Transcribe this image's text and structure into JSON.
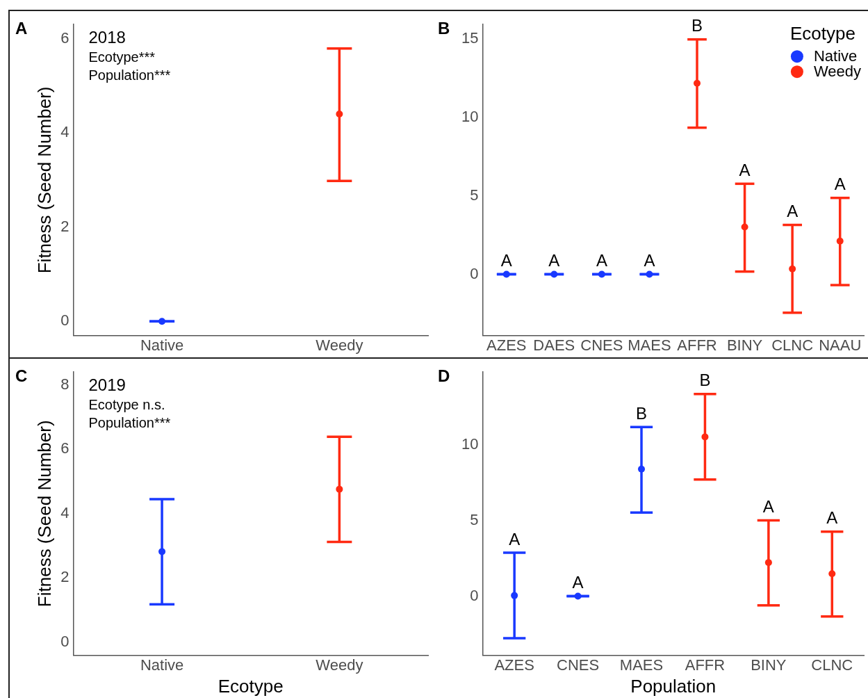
{
  "chart_data": [
    {
      "type": "scatter",
      "ylabel": "Fitness (Seed Number)",
      "categories": [
        "Native",
        "Weedy"
      ],
      "ylim": [
        -0.3,
        6.3
      ],
      "yticks": [
        0,
        2,
        4,
        6
      ],
      "grid": false,
      "legend": false,
      "marker": "circle",
      "annotations": [
        "A",
        "2018",
        "Ecotype***",
        "Population***"
      ],
      "values": [
        0,
        4.4
      ],
      "colors": [
        "#1939ff",
        "#ff2a12"
      ],
      "errors": [
        [
          0,
          0
        ],
        [
          2.98,
          5.79
        ]
      ]
    },
    {
      "type": "scatter",
      "categories": [
        "AZES",
        "DAES",
        "CNES",
        "MAES",
        "AFFR",
        "BINY",
        "CLNC",
        "NAAU"
      ],
      "ylim": [
        -3.9,
        15.9
      ],
      "yticks": [
        0,
        5,
        10,
        15
      ],
      "grid": false,
      "legend": "top right",
      "legend_title": "Ecotype",
      "marker": "circle",
      "annotations": [
        "B",
        {
          "text": "A",
          "x": "AZES",
          "y": 0
        },
        {
          "text": "A",
          "x": "DAES",
          "y": 0
        },
        {
          "text": "A",
          "x": "CNES",
          "y": 0
        },
        {
          "text": "A",
          "x": "MAES",
          "y": 0
        },
        {
          "text": "B",
          "x": "AFFR",
          "y": 14.95
        },
        {
          "text": "A",
          "x": "BINY",
          "y": 5.76
        },
        {
          "text": "A",
          "x": "CLNC",
          "y": 3.14
        },
        {
          "text": "A",
          "x": "NAAU",
          "y": 4.86
        }
      ],
      "series": [
        {
          "name": "Native",
          "color": "#1939ff",
          "values": [
            0,
            0,
            0,
            0,
            null,
            null,
            null,
            null
          ],
          "errors": [
            [
              0,
              0
            ],
            [
              0,
              0
            ],
            [
              0,
              0
            ],
            [
              0,
              0
            ],
            null,
            null,
            null,
            null
          ]
        },
        {
          "name": "Weedy",
          "color": "#ff2a12",
          "values": [
            null,
            null,
            null,
            null,
            12.16,
            3.01,
            0.34,
            2.11
          ],
          "errors": [
            null,
            null,
            null,
            null,
            [
              9.33,
              14.95
            ],
            [
              0.17,
              5.76
            ],
            [
              -2.45,
              3.14
            ],
            [
              -0.69,
              4.86
            ]
          ]
        }
      ]
    },
    {
      "type": "scatter",
      "xlabel": "Ecotype",
      "ylabel": "Fitness (Seed Number)",
      "categories": [
        "Native",
        "Weedy"
      ],
      "ylim": [
        -0.4,
        8.4
      ],
      "yticks": [
        0,
        2,
        4,
        6,
        8
      ],
      "grid": false,
      "legend": false,
      "marker": "circle",
      "annotations": [
        "C",
        "2019",
        "Ecotype n.s.",
        "Population***"
      ],
      "values": [
        2.82,
        4.76
      ],
      "colors": [
        "#1939ff",
        "#ff2a12"
      ],
      "errors": [
        [
          1.18,
          4.45
        ],
        [
          3.12,
          6.39
        ]
      ]
    },
    {
      "type": "scatter",
      "xlabel": "Population",
      "categories": [
        "AZES",
        "CNES",
        "MAES",
        "AFFR",
        "BINY",
        "CLNC"
      ],
      "ylim": [
        -3.9,
        14.8
      ],
      "yticks": [
        0,
        5,
        10
      ],
      "grid": false,
      "legend": false,
      "marker": "circle",
      "annotations": [
        "D",
        {
          "text": "A",
          "x": "AZES",
          "y": 2.87
        },
        {
          "text": "A",
          "x": "CNES",
          "y": 0
        },
        {
          "text": "B",
          "x": "MAES",
          "y": 11.17
        },
        {
          "text": "B",
          "x": "AFFR",
          "y": 13.35
        },
        {
          "text": "A",
          "x": "BINY",
          "y": 5.0
        },
        {
          "text": "A",
          "x": "CLNC",
          "y": 4.26
        }
      ],
      "values": [
        0.04,
        0,
        8.39,
        10.52,
        2.22,
        1.48
      ],
      "colors": [
        "#1939ff",
        "#1939ff",
        "#1939ff",
        "#ff2a12",
        "#ff2a12",
        "#ff2a12"
      ],
      "errors": [
        [
          -2.78,
          2.87
        ],
        [
          0,
          0
        ],
        [
          5.52,
          11.17
        ],
        [
          7.7,
          13.35
        ],
        [
          -0.61,
          5.0
        ],
        [
          -1.35,
          4.26
        ]
      ]
    }
  ]
}
